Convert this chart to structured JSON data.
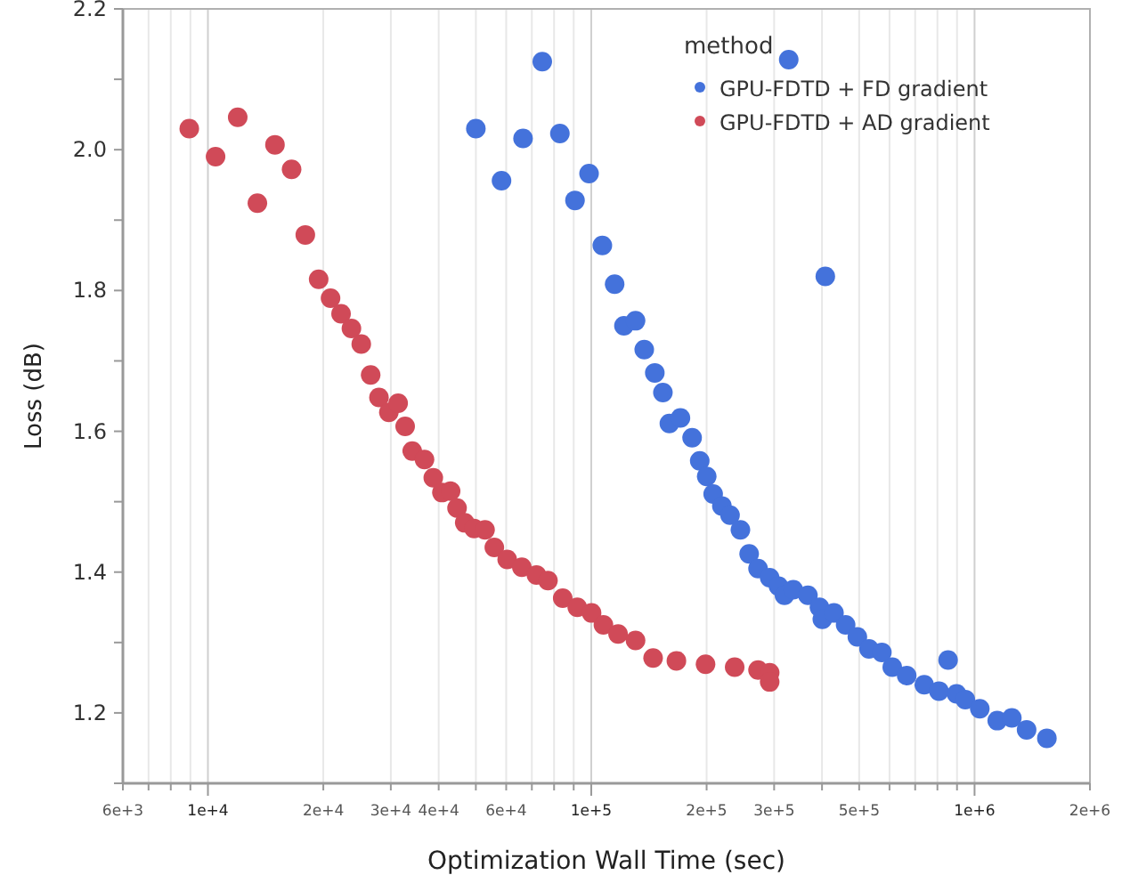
{
  "chart_data": {
    "type": "scatter",
    "xlabel": "Optimization Wall Time (sec)",
    "ylabel": "Loss (dB)",
    "legend_title": "method",
    "legend": "top right",
    "log": "x",
    "grid": "x",
    "marker": "circle",
    "xlim": [
      6000,
      2000000
    ],
    "xticks": [
      {
        "value": 6000,
        "label": "6e+3"
      },
      {
        "value": 7000,
        "label": null
      },
      {
        "value": 8000,
        "label": null
      },
      {
        "value": 9000,
        "label": null
      },
      {
        "value": 10000,
        "label": "1e+4"
      },
      {
        "value": 20000,
        "label": "2e+4"
      },
      {
        "value": 30000,
        "label": "3e+4"
      },
      {
        "value": 40000,
        "label": "4e+4"
      },
      {
        "value": 50000,
        "label": null
      },
      {
        "value": 60000,
        "label": "6e+4"
      },
      {
        "value": 70000,
        "label": null
      },
      {
        "value": 80000,
        "label": null
      },
      {
        "value": 90000,
        "label": null
      },
      {
        "value": 100000,
        "label": "1e+5"
      },
      {
        "value": 200000,
        "label": "2e+5"
      },
      {
        "value": 300000,
        "label": "3e+5"
      },
      {
        "value": 400000,
        "label": null
      },
      {
        "value": 500000,
        "label": "5e+5"
      },
      {
        "value": 600000,
        "label": null
      },
      {
        "value": 700000,
        "label": null
      },
      {
        "value": 800000,
        "label": null
      },
      {
        "value": 900000,
        "label": null
      },
      {
        "value": 1000000,
        "label": "1e+6"
      },
      {
        "value": 2000000,
        "label": "2e+6"
      }
    ],
    "ylim": [
      1.1,
      2.2
    ],
    "yticks": [
      {
        "value": 1.1,
        "label": null
      },
      1.2,
      {
        "value": 1.3,
        "label": null
      },
      1.4,
      {
        "value": 1.5,
        "label": null
      },
      1.6,
      {
        "value": 1.7,
        "label": null
      },
      1.8,
      {
        "value": 1.9,
        "label": null
      },
      {
        "value": 2.0,
        "label": "2.0"
      },
      {
        "value": 2.1,
        "label": null
      },
      2.2
    ],
    "series": [
      {
        "name": "GPU-FDTD + FD gradient",
        "color": "#4472db",
        "x": [
          50000,
          58340,
          66390,
          74520,
          82830,
          90700,
          98700,
          106900,
          115100,
          121700,
          130500,
          137500,
          146500,
          153800,
          159900,
          170900,
          183300,
          191900,
          200100,
          208000,
          219200,
          230200,
          245000,
          258200,
          272400,
          292100,
          308000,
          319200,
          327500,
          336600,
          367500,
          393900,
          400800,
          408000,
          429800,
          461000,
          494600,
          530400,
          573000,
          610000,
          665300,
          739200,
          807500,
          853000,
          897500,
          946000,
          1032000,
          1146000,
          1251000,
          1367000,
          1544000
        ],
        "values": [
          2.03,
          1.956,
          2.016,
          2.125,
          2.023,
          1.928,
          1.966,
          1.864,
          1.809,
          1.75,
          1.757,
          1.716,
          1.683,
          1.655,
          1.611,
          1.619,
          1.591,
          1.558,
          1.536,
          1.511,
          1.494,
          1.481,
          1.46,
          1.426,
          1.405,
          1.392,
          1.38,
          1.367,
          2.128,
          1.375,
          1.367,
          1.35,
          1.333,
          1.82,
          1.342,
          1.325,
          1.308,
          1.291,
          1.286,
          1.265,
          1.253,
          1.24,
          1.231,
          1.275,
          1.227,
          1.219,
          1.206,
          1.189,
          1.193,
          1.176,
          1.164
        ]
      },
      {
        "name": "GPU-FDTD + AD gradient",
        "color": "#d04a58",
        "x": [
          8940,
          10470,
          11960,
          13460,
          14960,
          16530,
          17950,
          19450,
          20890,
          22250,
          23680,
          25120,
          26580,
          27940,
          29650,
          31350,
          32700,
          34120,
          36730,
          38720,
          40780,
          42970,
          44660,
          46770,
          49450,
          52840,
          55870,
          60360,
          65910,
          71950,
          77110,
          84260,
          91950,
          100200,
          107600,
          117500,
          130500,
          145000,
          166800,
          198700,
          236700,
          272400,
          292100,
          292100
        ],
        "values": [
          2.03,
          1.99,
          2.046,
          1.924,
          2.007,
          1.972,
          1.879,
          1.816,
          1.789,
          1.767,
          1.746,
          1.724,
          1.68,
          1.648,
          1.627,
          1.64,
          1.607,
          1.572,
          1.56,
          1.534,
          1.513,
          1.515,
          1.491,
          1.47,
          1.462,
          1.46,
          1.435,
          1.418,
          1.407,
          1.396,
          1.388,
          1.363,
          1.35,
          1.342,
          1.325,
          1.312,
          1.303,
          1.278,
          1.274,
          1.269,
          1.265,
          1.261,
          1.257,
          1.244
        ]
      }
    ]
  }
}
